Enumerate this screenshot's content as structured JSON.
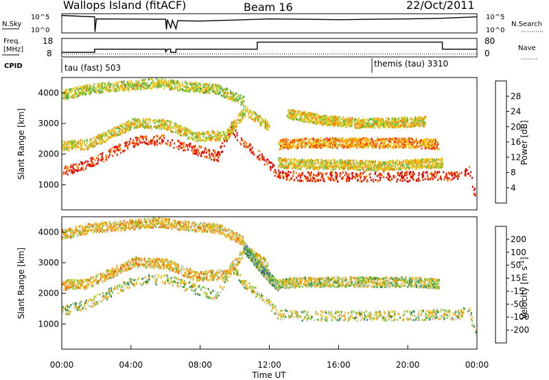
{
  "header": {
    "site": "Wallops Island (fitACF)",
    "beam": "Beam 16",
    "date": "22/Oct/2011"
  },
  "chart_data": [
    {
      "type": "line",
      "panel": "noise",
      "left_label": "N.Sky",
      "right_label": "N.Search",
      "left_ticks": [
        "10^5",
        "10^0"
      ],
      "right_ticks": [
        "10^5",
        "10^0"
      ],
      "series": [
        {
          "style": "solid",
          "x": [
            0,
            1.9,
            1.92,
            2.0,
            6.0,
            6.05,
            6.1,
            6.3,
            6.4,
            6.6,
            6.7,
            8,
            10,
            12,
            14,
            16,
            18,
            20,
            22,
            24
          ],
          "y": [
            5.0,
            4.6,
            0.3,
            4.0,
            3.9,
            1.0,
            3.8,
            1.5,
            3.6,
            1.2,
            3.5,
            3.4,
            3.7,
            4.0,
            3.9,
            3.8,
            3.9,
            4.0,
            4.2,
            4.6
          ]
        }
      ]
    },
    {
      "type": "line",
      "panel": "frequency",
      "left_label": "Freq.",
      "left_units": "[MHz]",
      "right_label": "Nave",
      "left_ticks": [
        "18",
        "8"
      ],
      "right_ticks": [
        "80",
        "0"
      ],
      "series": [
        {
          "style": "solid",
          "x": [
            0,
            1.9,
            1.9,
            6.0,
            6.0,
            6.1,
            6.3,
            6.3,
            6.6,
            6.6,
            11.3,
            11.3,
            22.0,
            22.0,
            24
          ],
          "y": [
            10.5,
            10.5,
            12.2,
            12.2,
            10.5,
            12.2,
            12.2,
            10.5,
            10.5,
            12.2,
            12.2,
            16.0,
            16.0,
            12.2,
            12.2
          ]
        },
        {
          "style": "dotted",
          "x": [
            0,
            24
          ],
          "y": [
            9.6,
            9.6
          ]
        }
      ]
    },
    {
      "type": "table",
      "panel": "cpid",
      "left_label": "CPID",
      "modes": [
        {
          "label": "tau (fast) 503",
          "start": 0
        },
        {
          "label": "themis (tau) 3310",
          "start": 18.0
        }
      ]
    },
    {
      "type": "heatmap",
      "panel": "power",
      "xlabel": "",
      "ylabel": "Slant Range [km]",
      "xlim": [
        0,
        24
      ],
      "ylim": [
        180,
        4500
      ],
      "yticks": [
        "1000",
        "2000",
        "3000",
        "4000"
      ],
      "colorbar": {
        "label": "Power [dB]",
        "range": [
          0,
          32
        ],
        "ticks": [
          "4",
          "8",
          "12",
          "16",
          "20",
          "24",
          "28"
        ],
        "colors": [
          "#0a10e0",
          "#2a60b8",
          "#3c8d6a",
          "#58b84a",
          "#b7d233",
          "#ffc31a",
          "#ff8200",
          "#ff2b00",
          "#e00000"
        ]
      },
      "bands": [
        {
          "x": [
            0,
            1.5,
            4.2,
            5.9,
            7.6,
            9.0,
            9.8,
            10.5,
            11.5,
            12.5,
            14,
            16,
            18,
            20,
            22,
            22.8,
            23.5,
            23.9
          ],
          "y": [
            1400,
            1650,
            2400,
            2450,
            2150,
            1900,
            2850,
            2300,
            1900,
            1300,
            1250,
            1250,
            1250,
            1250,
            1300,
            1250,
            1500,
            600
          ],
          "level": 28
        },
        {
          "x": [
            12.5,
            14,
            16,
            18,
            20,
            21.8
          ],
          "y": [
            2300,
            2350,
            2350,
            2350,
            2350,
            2300
          ],
          "level": 22
        },
        {
          "x": [
            0,
            1.5,
            4.2,
            6.0,
            7.7,
            9.5,
            10.6,
            12.0
          ],
          "y": [
            2250,
            2300,
            3000,
            2950,
            2550,
            2600,
            3400,
            2850
          ],
          "level": 18
        },
        {
          "x": [
            12.5,
            14,
            16,
            18,
            20,
            22
          ],
          "y": [
            1700,
            1650,
            1650,
            1600,
            1650,
            1700
          ],
          "level": 18
        },
        {
          "x": [
            0,
            1.5,
            3.5,
            5.5,
            7.0,
            9.0,
            10.5
          ],
          "y": [
            3900,
            4100,
            4200,
            4300,
            4200,
            4100,
            3700
          ],
          "level": 16
        },
        {
          "x": [
            13,
            15,
            17,
            19,
            21
          ],
          "y": [
            3300,
            3100,
            3000,
            3000,
            3050
          ],
          "level": 18
        }
      ]
    },
    {
      "type": "heatmap",
      "panel": "velocity",
      "xlabel": "Time UT",
      "ylabel": "Slant Range [km]",
      "xlim": [
        0,
        24
      ],
      "ylim": [
        180,
        4500
      ],
      "xticks": [
        "00:00",
        "04:00",
        "08:00",
        "12:00",
        "16:00",
        "20:00",
        "00:00"
      ],
      "yticks": [
        "1000",
        "2000",
        "3000",
        "4000"
      ],
      "colorbar": {
        "label": "Velocity [m s^-1]",
        "ticks": [
          "200",
          "100",
          "50",
          "15",
          "-15",
          "-50",
          "-100",
          "-200"
        ],
        "colors": [
          "#1020c8",
          "#2f62a8",
          "#2f8a50",
          "#7dc83a",
          "#c8c8c8",
          "#f0c83a",
          "#f5a000",
          "#f06000",
          "#e00000"
        ]
      },
      "bands": [
        {
          "x": [
            0,
            1.5,
            4.2,
            5.9,
            7.6,
            9.0,
            9.8,
            10.5,
            11.5,
            12.5,
            14,
            16,
            18,
            20,
            22,
            22.8,
            23.5,
            23.9
          ],
          "y": [
            1400,
            1650,
            2400,
            2450,
            2150,
            1900,
            2850,
            2300,
            1900,
            1300,
            1250,
            1250,
            1250,
            1250,
            1300,
            1250,
            1500,
            600
          ],
          "level": 0
        },
        {
          "x": [
            12.5,
            14,
            16,
            18,
            20,
            21.8
          ],
          "y": [
            2300,
            2350,
            2350,
            2350,
            2350,
            2300
          ],
          "level": 0
        },
        {
          "x": [
            0,
            1.5,
            4.2,
            6.0,
            7.7,
            9.5,
            10.6,
            12.0
          ],
          "y": [
            2250,
            2300,
            3000,
            2950,
            2550,
            2600,
            3400,
            2850
          ],
          "level": -40
        },
        {
          "x": [
            10.5,
            11.2,
            11.8,
            12.5
          ],
          "y": [
            3500,
            3000,
            2600,
            2200
          ],
          "level": 40
        },
        {
          "x": [
            0,
            1.5,
            3.5,
            5.5,
            7.0,
            9.0,
            10.5
          ],
          "y": [
            3900,
            4100,
            4200,
            4300,
            4200,
            4100,
            3700
          ],
          "level": -40
        }
      ]
    }
  ]
}
